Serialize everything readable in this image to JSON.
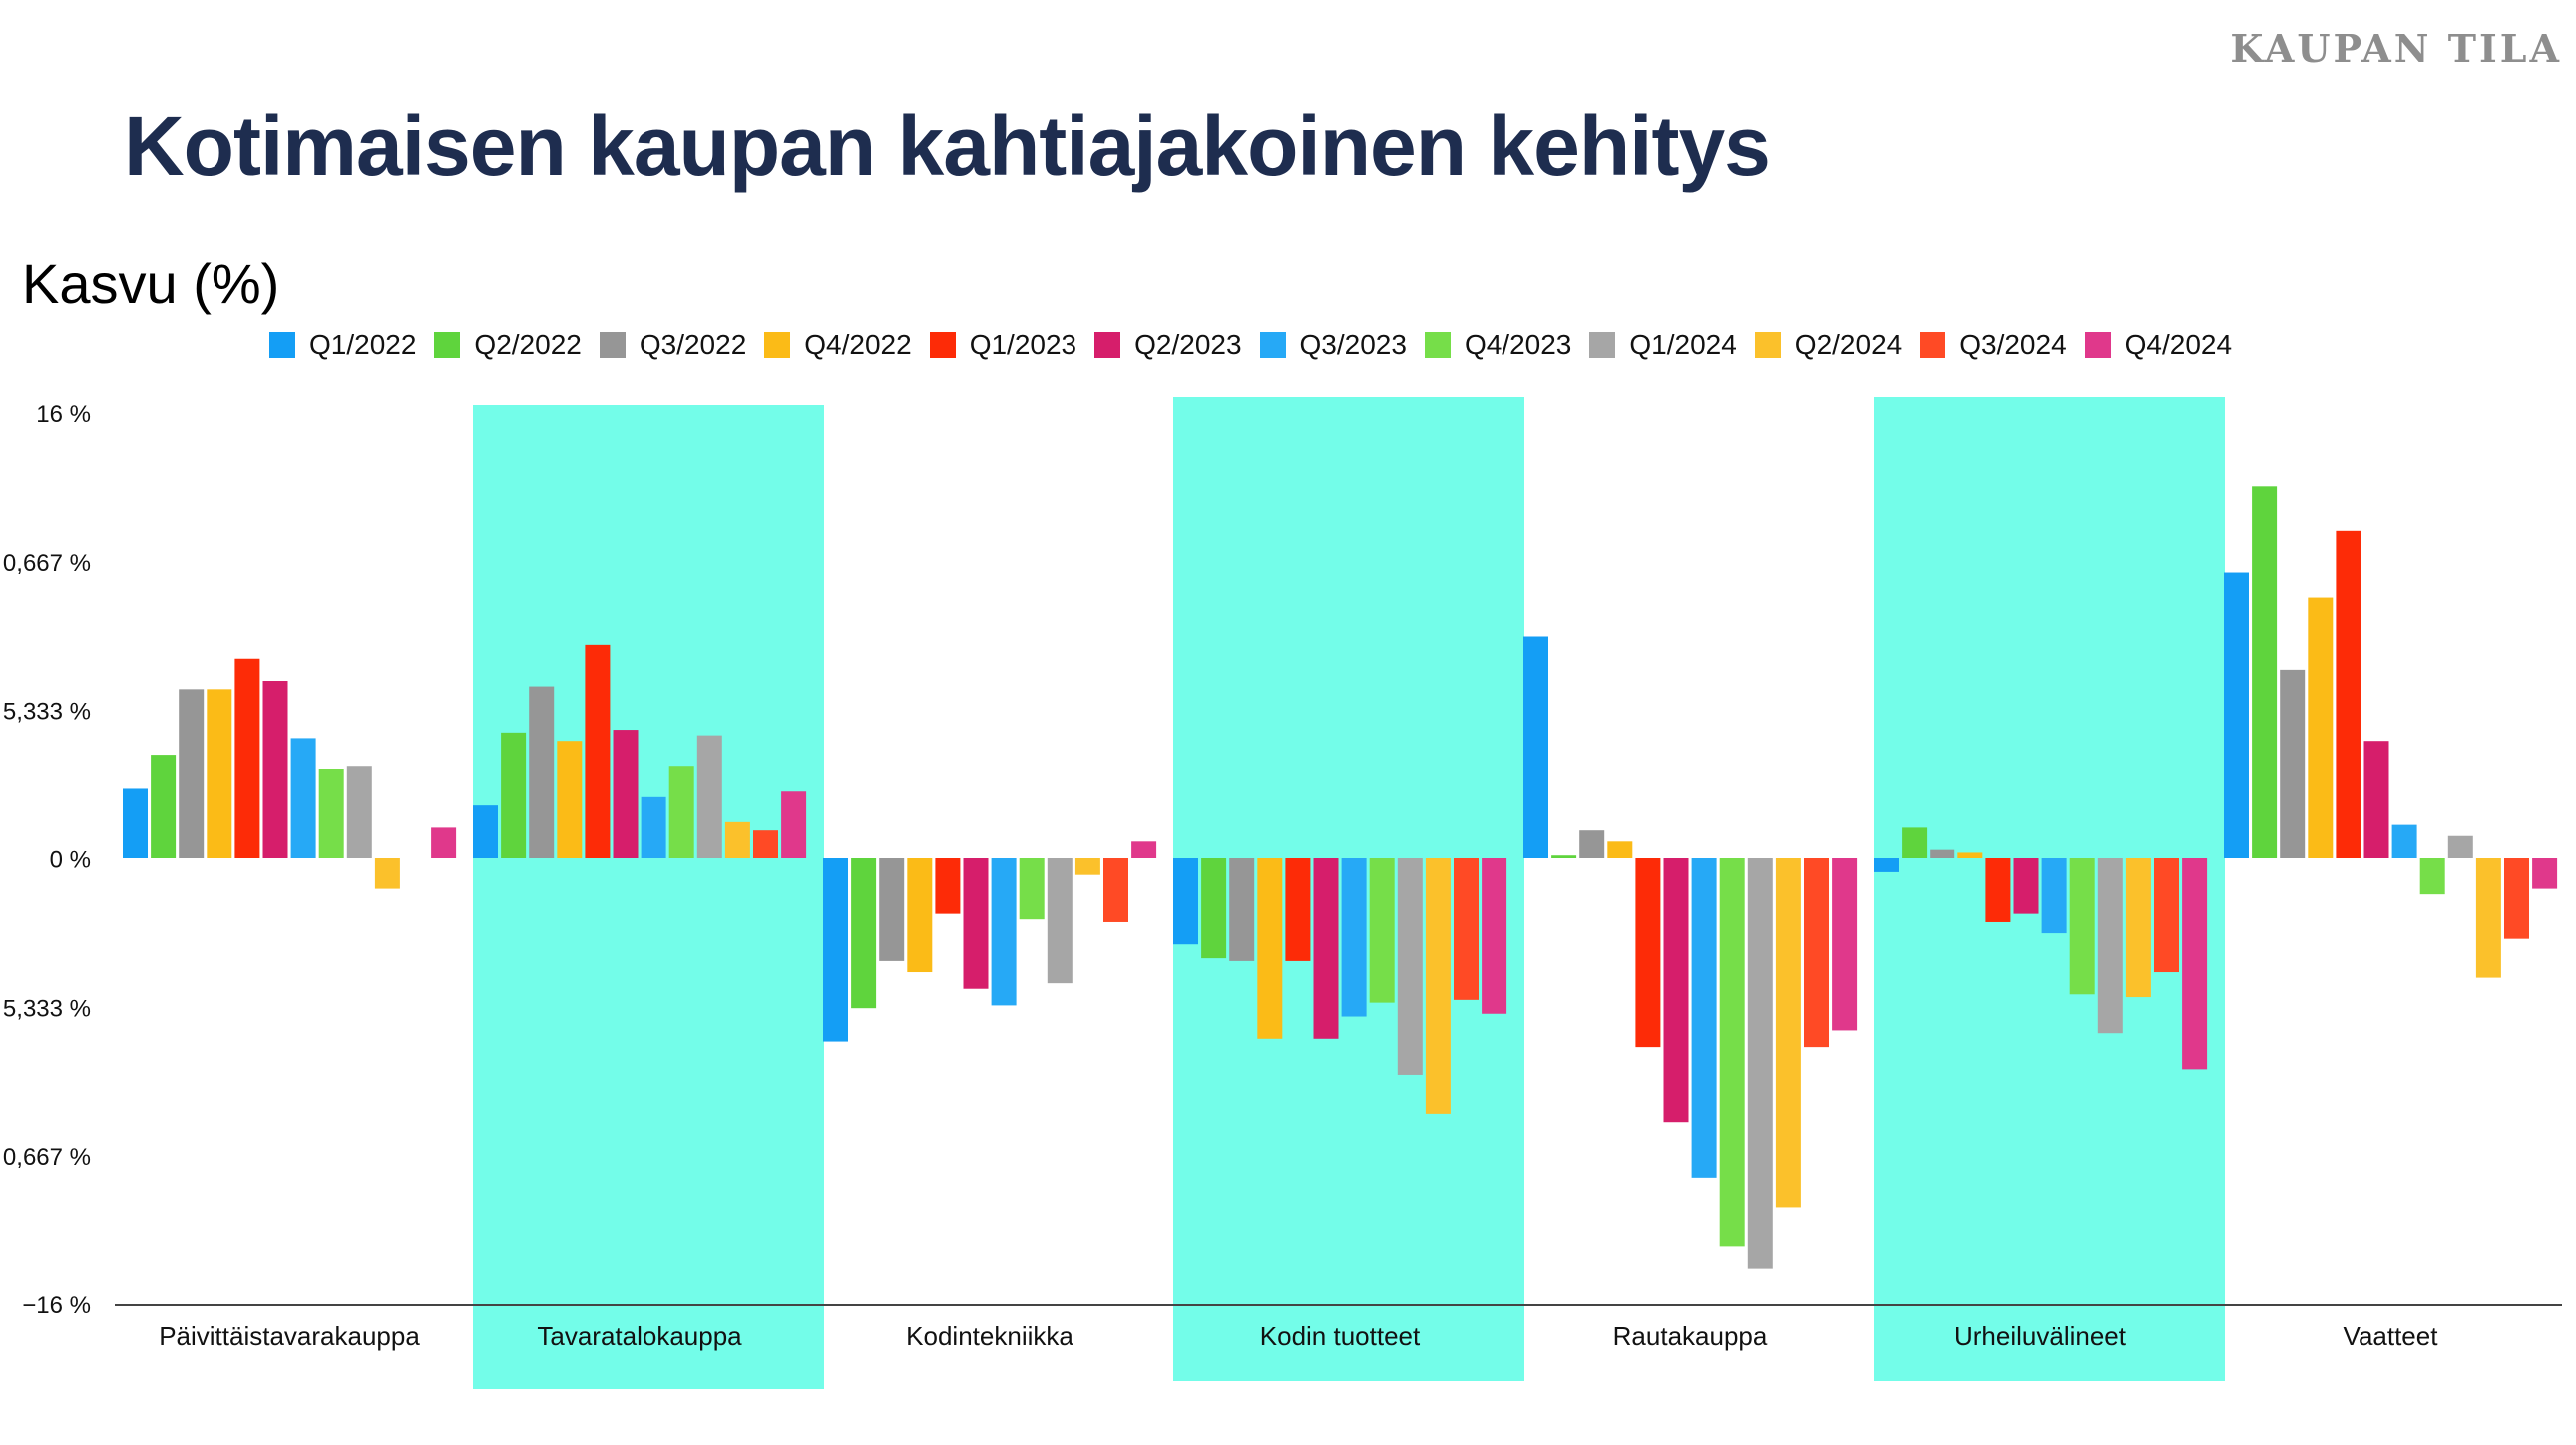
{
  "brand": "KAUPAN TILA",
  "title": "Kotimaisen kaupan kahtiajakoinen kehitys",
  "colors": {
    "highlight": "#73fde9",
    "axis": "#444444",
    "title": "#1e2d4f"
  },
  "chart_data": {
    "type": "bar",
    "ylabel": "Kasvu (%)",
    "xlabel": "",
    "ylim": [
      -16,
      16
    ],
    "y_tick_labels": [
      "16 %",
      "0,667 %",
      "5,333 %",
      "0 %",
      "5,333 %",
      "0,667 %",
      "−16 %"
    ],
    "categories": [
      "Päivittäistavarakauppa",
      "Tavaratalokauppa",
      "Kodintekniikka",
      "Kodin tuotteet",
      "Rautakauppa",
      "Urheiluvälineet",
      "Vaatteet"
    ],
    "highlighted_categories": [
      "Tavaratalokauppa",
      "Kodin tuotteet",
      "Urheiluvälineet"
    ],
    "legend_position": "top",
    "grid": false,
    "series": [
      {
        "name": "Q1/2022",
        "color": "#149ef5",
        "values": [
          2.5,
          1.9,
          -6.6,
          -3.1,
          8.0,
          -0.5,
          10.3
        ]
      },
      {
        "name": "Q2/2022",
        "color": "#5fd43d",
        "values": [
          3.7,
          4.5,
          -5.4,
          -3.6,
          0.1,
          1.1,
          13.4
        ]
      },
      {
        "name": "Q3/2022",
        "color": "#969696",
        "values": [
          6.1,
          6.2,
          -3.7,
          -3.7,
          1.0,
          0.3,
          6.8
        ]
      },
      {
        "name": "Q4/2022",
        "color": "#fbbb17",
        "values": [
          6.1,
          4.2,
          -4.1,
          -6.5,
          0.6,
          0.2,
          9.4
        ]
      },
      {
        "name": "Q1/2023",
        "color": "#fd2b07",
        "values": [
          7.2,
          7.7,
          -2.0,
          -3.7,
          -6.8,
          -2.3,
          11.8
        ]
      },
      {
        "name": "Q2/2023",
        "color": "#d61e6b",
        "values": [
          6.4,
          4.6,
          -4.7,
          -6.5,
          -9.5,
          -2.0,
          4.2
        ]
      },
      {
        "name": "Q3/2023",
        "color": "#26a9f6",
        "values": [
          4.3,
          2.2,
          -5.3,
          -5.7,
          -11.5,
          -2.7,
          1.2
        ]
      },
      {
        "name": "Q4/2023",
        "color": "#76de49",
        "values": [
          3.2,
          3.3,
          -2.2,
          -5.2,
          -14.0,
          -4.9,
          -1.3
        ]
      },
      {
        "name": "Q1/2024",
        "color": "#a6a6a6",
        "values": [
          3.3,
          4.4,
          -4.5,
          -7.8,
          -14.8,
          -6.3,
          0.8
        ]
      },
      {
        "name": "Q2/2024",
        "color": "#fbc12b",
        "values": [
          -1.1,
          1.3,
          -0.6,
          -9.2,
          -12.6,
          -5.0,
          -4.3
        ]
      },
      {
        "name": "Q3/2024",
        "color": "#ff4a25",
        "values": [
          0.0,
          1.0,
          -2.3,
          -5.1,
          -6.8,
          -4.1,
          -2.9
        ]
      },
      {
        "name": "Q4/2024",
        "color": "#e0388b",
        "values": [
          1.1,
          2.4,
          0.6,
          -5.6,
          -6.2,
          -7.6,
          -1.1
        ]
      }
    ]
  }
}
